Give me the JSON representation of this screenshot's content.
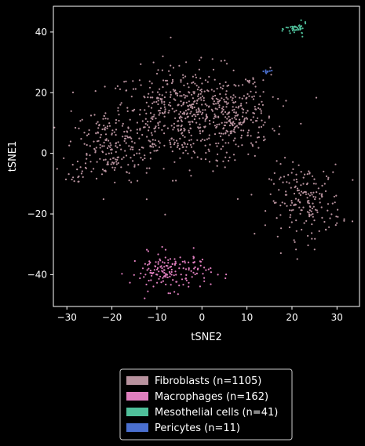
{
  "chart_data": {
    "type": "scatter",
    "xlabel": "tSNE2",
    "ylabel": "tSNE1",
    "xlim": [
      -33,
      35
    ],
    "ylim": [
      -50.5,
      48.5
    ],
    "x_ticks": [
      -30,
      -20,
      -10,
      0,
      10,
      20,
      30
    ],
    "y_ticks": [
      -40,
      -20,
      0,
      20,
      40
    ],
    "grid": false,
    "legend_position": "bottom-center",
    "background": "#000000",
    "series": [
      {
        "name": "Fibroblasts (n=1105)",
        "color": "#b8929e",
        "clusters": [
          {
            "cx": -3,
            "cy": 12,
            "sx": 9,
            "sy": 8,
            "n": 620
          },
          {
            "cx": -21,
            "cy": 2,
            "sx": 4.5,
            "sy": 6,
            "n": 170
          },
          {
            "cx": 8,
            "cy": 12,
            "sx": 4,
            "sy": 6,
            "n": 120
          },
          {
            "cx": 23,
            "cy": -16,
            "sx": 4,
            "sy": 6,
            "n": 185
          },
          {
            "cx": -27,
            "cy": -6,
            "sx": 1.5,
            "sy": 1.5,
            "n": 10
          }
        ]
      },
      {
        "name": "Macrophages (n=162)",
        "color": "#e07fbf",
        "clusters": [
          {
            "cx": -7,
            "cy": -39,
            "sx": 4.5,
            "sy": 3,
            "n": 162
          }
        ]
      },
      {
        "name": "Mesothelial cells (n=41)",
        "color": "#4fbf9a",
        "clusters": [
          {
            "cx": 21,
            "cy": 41,
            "sx": 1.2,
            "sy": 1,
            "n": 41
          }
        ]
      },
      {
        "name": "Pericytes (n=11)",
        "color": "#4a6fcf",
        "clusters": [
          {
            "cx": 14.5,
            "cy": 27,
            "sx": 0.6,
            "sy": 0.3,
            "n": 11
          }
        ]
      }
    ]
  }
}
